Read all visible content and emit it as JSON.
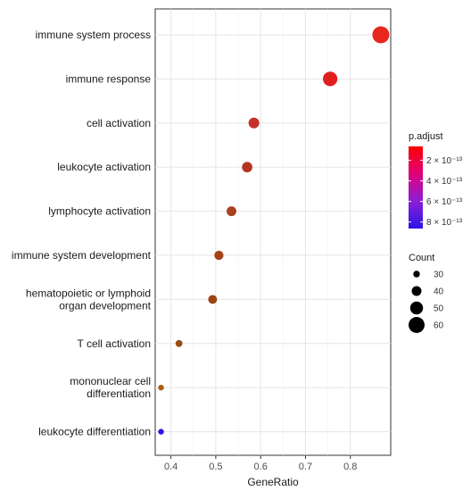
{
  "chart_data": {
    "type": "scatter",
    "xlabel": "GeneRatio",
    "xlim": [
      0.365,
      0.89
    ],
    "xticks": [
      "0.4",
      "0.5",
      "0.6",
      "0.7",
      "0.8"
    ],
    "xtick_values": [
      0.4,
      0.5,
      0.6,
      0.7,
      0.8
    ],
    "grid": true,
    "categories": [
      "immune system process",
      "immune response",
      "cell activation",
      "leukocyte activation",
      "lymphocyte activation",
      "immune system development",
      "hematopoietic or lymphoid\norgan development",
      "T cell activation",
      "mononuclear cell\ndifferentiation",
      "leukocyte differentiation"
    ],
    "points": [
      {
        "x": 0.868,
        "count": 63,
        "color": "#e8261c"
      },
      {
        "x": 0.755,
        "count": 55,
        "color": "#e01e1e"
      },
      {
        "x": 0.585,
        "count": 43,
        "color": "#c72f2f"
      },
      {
        "x": 0.57,
        "count": 42,
        "color": "#b4341f"
      },
      {
        "x": 0.535,
        "count": 40,
        "color": "#a9401f"
      },
      {
        "x": 0.507,
        "count": 38,
        "color": "#a44218"
      },
      {
        "x": 0.493,
        "count": 37,
        "color": "#9b4414"
      },
      {
        "x": 0.418,
        "count": 31,
        "color": "#9a4a14"
      },
      {
        "x": 0.378,
        "count": 27,
        "color": "#a85f12"
      },
      {
        "x": 0.378,
        "count": 27,
        "color": "#2a14e6"
      }
    ],
    "legend_color": {
      "title": "p.adjust",
      "labels": [
        "2 × 10⁻¹³",
        "4 × 10⁻¹³",
        "6 × 10⁻¹³",
        "8 × 10⁻¹³"
      ],
      "colors": [
        "#ff0000",
        "#e0007a",
        "#8b1fd6",
        "#2a14e6"
      ]
    },
    "legend_size": {
      "title": "Count",
      "labels": [
        "30",
        "40",
        "50",
        "60"
      ],
      "values": [
        30,
        40,
        50,
        60
      ]
    },
    "legend_placement": "right"
  }
}
